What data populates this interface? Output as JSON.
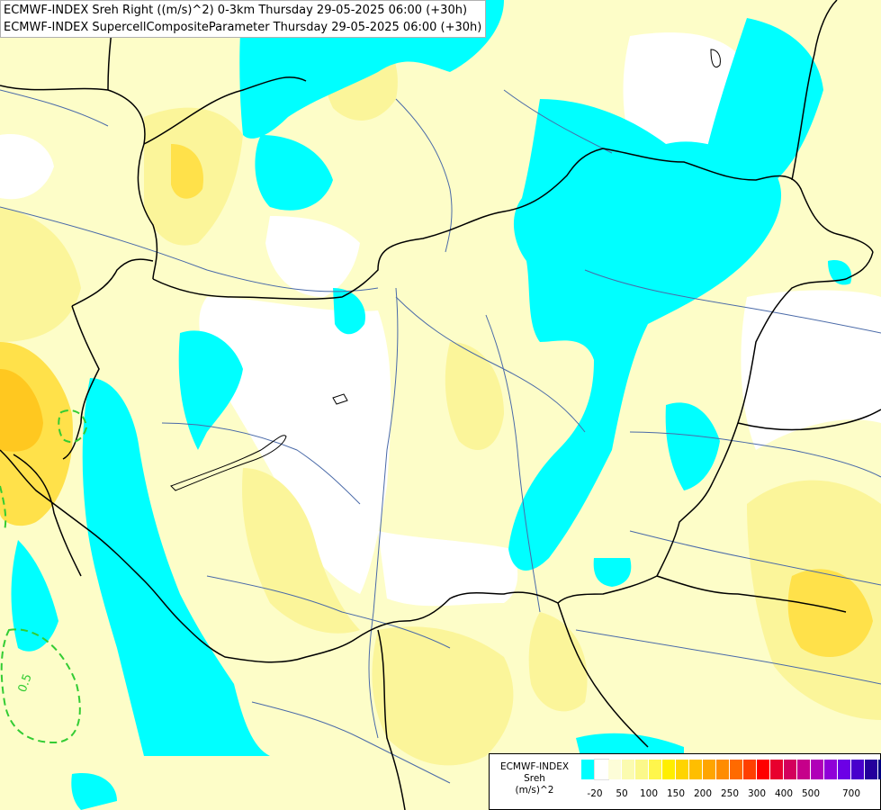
{
  "header": {
    "line1": "ECMWF-INDEX Sreh Right ((m/s)^2) 0-3km Thursday 29-05-2025 06:00 (+30h)",
    "line2": "ECMWF-INDEX SupercellCompositeParameter Thursday 29-05-2025 06:00 (+30h)"
  },
  "legend": {
    "title1": "ECMWF-INDEX",
    "title2": "Sreh",
    "title3": "(m/s)^2",
    "colors": [
      "#00ffff",
      "#ffffff",
      "#fdfdd8",
      "#fbfbb0",
      "#fbf88a",
      "#fff64c",
      "#ffee00",
      "#ffd400",
      "#ffbe00",
      "#ffa500",
      "#ff8c00",
      "#ff6a00",
      "#ff4000",
      "#ff0000",
      "#e8002e",
      "#d4005c",
      "#c6008a",
      "#b000b8",
      "#9000d8",
      "#6c00e6",
      "#4800cc",
      "#24009c",
      "#000080"
    ],
    "labels": [
      "-20",
      "50",
      "100",
      "150",
      "200",
      "250",
      "300",
      "400",
      "500",
      "700"
    ]
  },
  "contours": {
    "label": "0.5",
    "color": "#33cc33"
  },
  "colors": {
    "cyan": "#00ffff",
    "light_yellow": "#fdfdc8",
    "yellow": "#fbf59a",
    "gold": "#ffe14a",
    "orange": "#ffc820",
    "border": "#000000",
    "river": "#4a6aa8"
  }
}
